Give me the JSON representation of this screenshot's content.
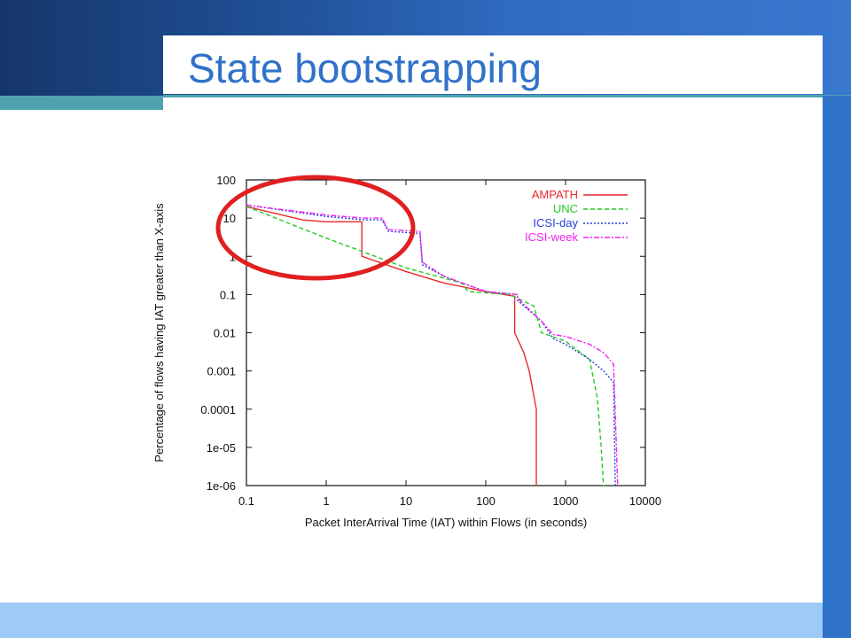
{
  "slide": {
    "title": "State bootstrapping",
    "colors": {
      "header_dark": "#16366b",
      "header_light": "#3a78cf",
      "title": "#2f72c8",
      "accent_teal": "#4fa3b0",
      "side_bar": "#2f73c9",
      "bottom_bar": "#9ecbf6",
      "highlight_circle": "#e02020"
    }
  },
  "chart_data": {
    "type": "line",
    "title": "",
    "xlabel": "Packet InterArrival Time (IAT) within Flows (in seconds)",
    "ylabel": "Percentage of flows having IAT greater than X-axis",
    "x_scale": "log",
    "y_scale": "log",
    "xlim": [
      0.1,
      10000
    ],
    "ylim": [
      1e-06,
      100
    ],
    "x_ticks": [
      "0.1",
      "1",
      "10",
      "100",
      "1000",
      "10000"
    ],
    "y_ticks": [
      "100",
      "10",
      "1",
      "0.1",
      "0.01",
      "0.001",
      "0.0001",
      "1e-05",
      "1e-06"
    ],
    "grid": false,
    "legend_position": "top-right",
    "annotation": "red circle highlighting IAT range 0.1–10 s",
    "series": [
      {
        "name": "AMPATH",
        "color": "#e8282a",
        "style": "solid",
        "x": [
          0.1,
          0.5,
          1,
          2.8,
          2.8,
          10,
          30,
          100,
          230,
          230,
          300,
          350,
          430,
          430,
          440
        ],
        "y": [
          20,
          9,
          8,
          8,
          1.0,
          0.4,
          0.2,
          0.12,
          0.09,
          0.01,
          0.003,
          0.001,
          0.0001,
          1e-06,
          1e-06
        ]
      },
      {
        "name": "UNC",
        "color": "#22cc22",
        "style": "dashed",
        "x": [
          0.1,
          1,
          10,
          50,
          60,
          200,
          400,
          500,
          1000,
          2000,
          2500,
          2800,
          3000,
          3100
        ],
        "y": [
          20,
          3,
          0.5,
          0.2,
          0.12,
          0.1,
          0.05,
          0.01,
          0.006,
          0.002,
          0.0002,
          1e-05,
          1e-06,
          1e-06
        ]
      },
      {
        "name": "ICSI-day",
        "color": "#2a3fd8",
        "style": "dotted",
        "x": [
          0.1,
          1,
          3,
          5,
          6,
          15,
          16,
          30,
          100,
          250,
          250,
          500,
          700,
          1000,
          2000,
          3000,
          4000,
          4200,
          4300
        ],
        "y": [
          22,
          11,
          9,
          9,
          4.5,
          4,
          0.6,
          0.3,
          0.12,
          0.1,
          0.07,
          0.02,
          0.007,
          0.005,
          0.002,
          0.001,
          0.0005,
          1e-06,
          1e-06
        ]
      },
      {
        "name": "ICSI-week",
        "color": "#ee22ee",
        "style": "dash-dot",
        "x": [
          0.1,
          1,
          3,
          5,
          6,
          15,
          16,
          30,
          100,
          250,
          250,
          500,
          700,
          1000,
          2000,
          3000,
          4000,
          4500,
          4600
        ],
        "y": [
          22,
          12,
          10,
          10,
          5,
          4.5,
          0.7,
          0.3,
          0.12,
          0.1,
          0.08,
          0.02,
          0.009,
          0.008,
          0.005,
          0.003,
          0.0015,
          1e-06,
          1e-06
        ]
      }
    ]
  }
}
